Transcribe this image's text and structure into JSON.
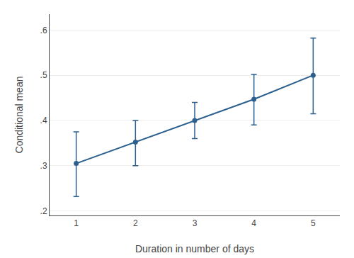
{
  "chart_data": {
    "type": "line",
    "x": [
      1,
      2,
      3,
      4,
      5
    ],
    "series": [
      {
        "color": "#2b5f8e",
        "marker": "circle",
        "line_style": "solid",
        "values": [
          0.305,
          0.352,
          0.4,
          0.447,
          0.5
        ],
        "lower": [
          0.232,
          0.3,
          0.36,
          0.39,
          0.415
        ],
        "upper": [
          0.375,
          0.4,
          0.44,
          0.502,
          0.582
        ]
      }
    ],
    "xlabel": "Duration in number of days",
    "ylabel": "Conditional mean",
    "xlim": [
      0.55,
      5.45
    ],
    "ylim": [
      0.19,
      0.635
    ],
    "xticks": [
      1,
      2,
      3,
      4,
      5
    ],
    "yticks": [
      {
        "value": 0.2,
        "label": ".2"
      },
      {
        "value": 0.3,
        "label": ".3"
      },
      {
        "value": 0.4,
        "label": ".4"
      },
      {
        "value": 0.5,
        "label": ".5"
      },
      {
        "value": 0.6,
        "label": ".6"
      }
    ],
    "grid": "y"
  }
}
